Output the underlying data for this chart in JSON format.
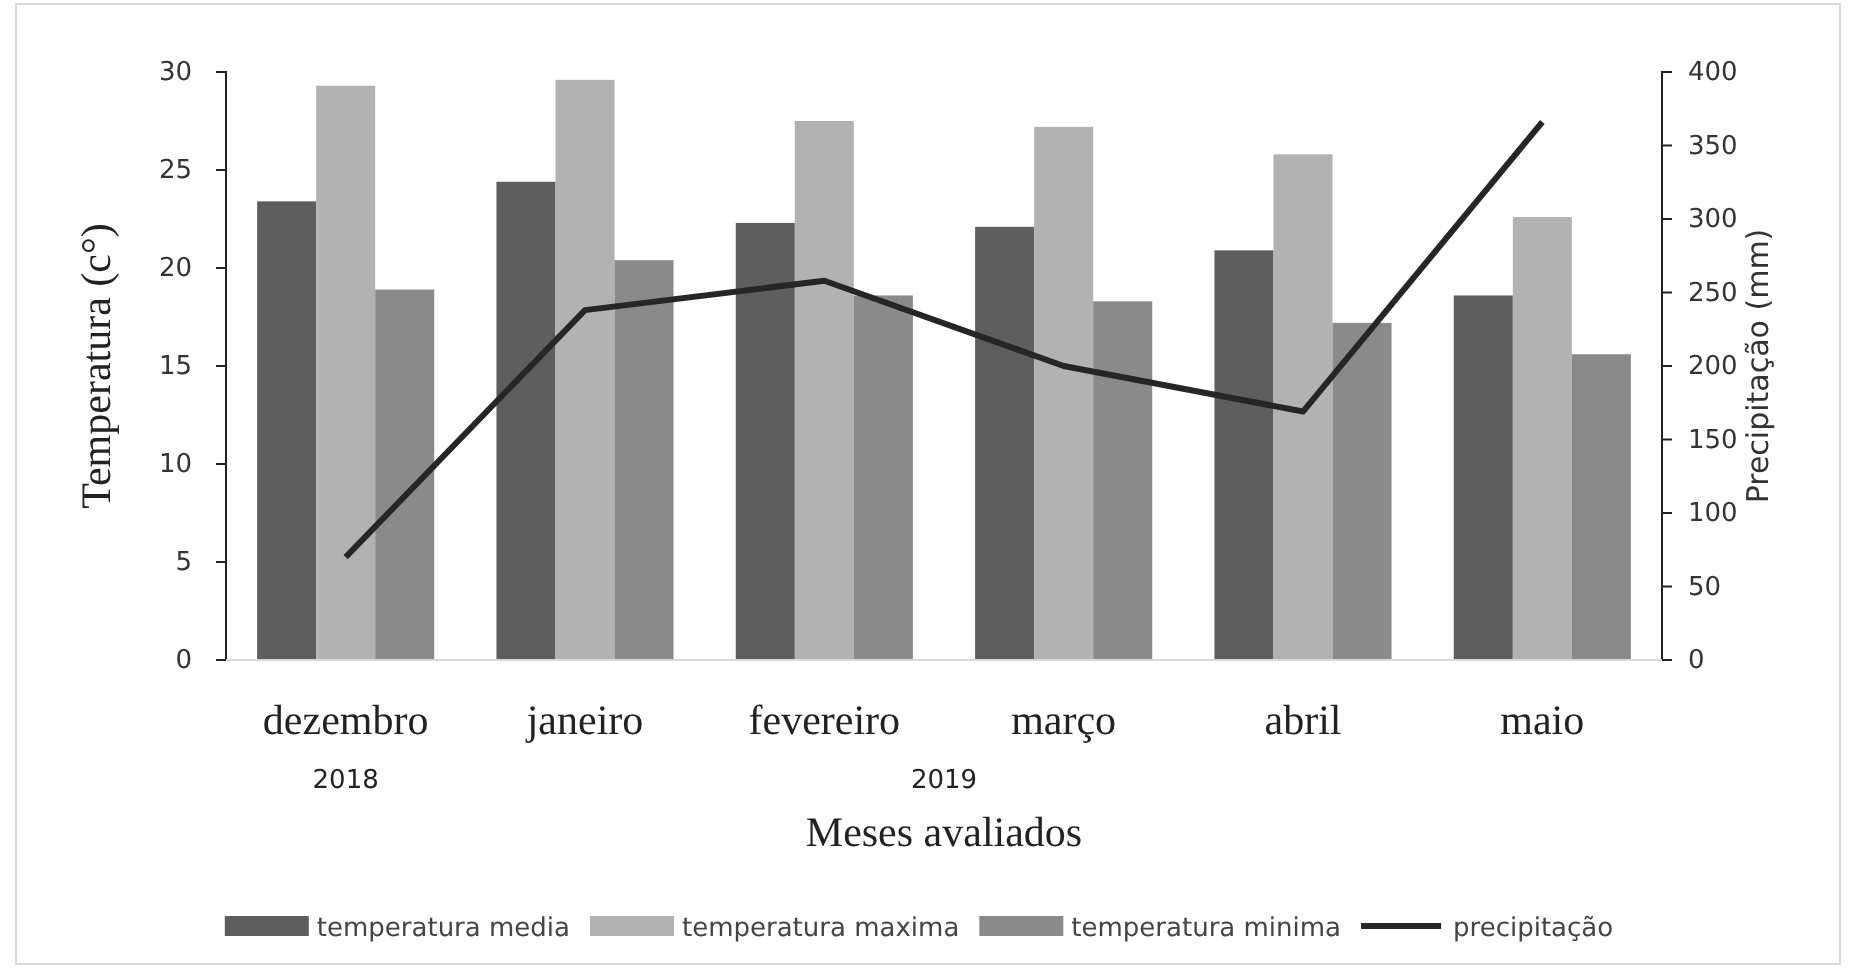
{
  "chart_data": {
    "type": "bar",
    "xlabel": "Meses avaliados",
    "ylabel": "Temperatura (c°)",
    "y2label": "Precipitação (mm)",
    "categories": [
      "dezembro",
      "janeiro",
      "fevereiro",
      "março",
      "abril",
      "maio"
    ],
    "series": [
      {
        "name": "temperatura media",
        "color": "#5e5e5e",
        "values": [
          23.4,
          24.4,
          22.3,
          22.1,
          20.9,
          18.6
        ]
      },
      {
        "name": "temperatura maxima",
        "color": "#b2b2b2",
        "values": [
          29.3,
          29.6,
          27.5,
          27.2,
          25.8,
          22.6
        ]
      },
      {
        "name": "temperatura minima",
        "color": "#8a8a8a",
        "values": [
          18.9,
          20.4,
          18.6,
          18.3,
          17.2,
          15.6
        ]
      },
      {
        "name": "precipitação",
        "type": "line",
        "axis": "y2",
        "color": "#262626",
        "values": [
          70,
          238,
          258,
          200,
          169,
          366
        ]
      }
    ],
    "ylim": [
      0,
      30
    ],
    "yticks": [
      0,
      5,
      10,
      15,
      20,
      25,
      30
    ],
    "y2lim": [
      0,
      400
    ],
    "y2ticks": [
      0,
      50,
      100,
      150,
      200,
      250,
      300,
      350,
      400
    ],
    "annotations": [
      "2018",
      "2019"
    ],
    "legend": "bottom",
    "grid": false,
    "marker": "none"
  }
}
